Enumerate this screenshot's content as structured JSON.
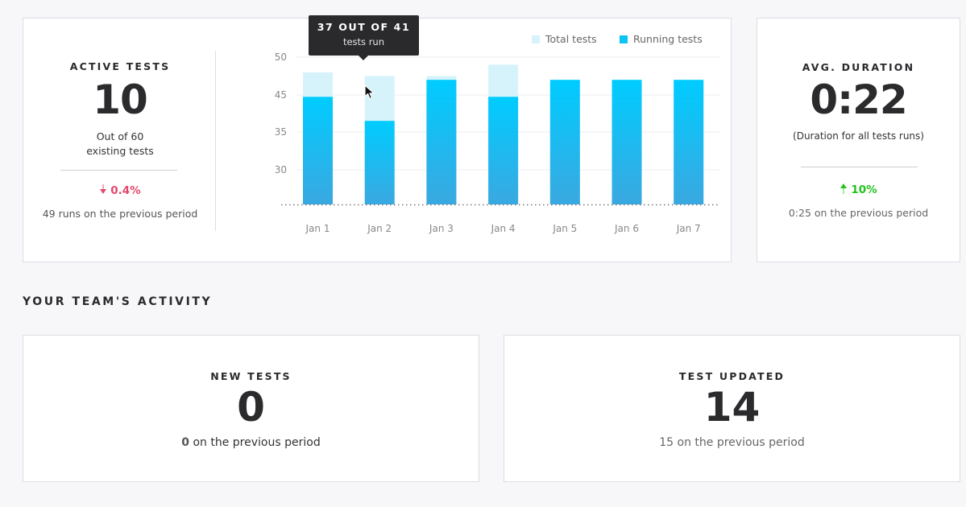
{
  "active_tests": {
    "label": "ACTIVE TESTS",
    "value": "10",
    "sub_line1": "Out of 60",
    "sub_line2": "existing tests",
    "delta": "0.4%",
    "previous": "49 runs on the previous period"
  },
  "chart_data": {
    "type": "bar",
    "categories": [
      "Jan 1",
      "Jan 2",
      "Jan 3",
      "Jan 4",
      "Jan 5",
      "Jan 6",
      "Jan 7"
    ],
    "y_ticks": [
      50,
      45,
      35,
      30
    ],
    "series": [
      {
        "name": "Total tests",
        "values": [
          48,
          47.5,
          47.5,
          49,
          47,
          47,
          47
        ],
        "color": "#d6f3fc"
      },
      {
        "name": "Running tests",
        "values": [
          44.5,
          38,
          47,
          44.5,
          47,
          47,
          47
        ],
        "color": "#0ac5f3"
      }
    ],
    "legend_position": "top-right",
    "grid": true
  },
  "tooltip": {
    "title": "37 OUT OF 41",
    "subtitle": "tests run"
  },
  "avg_duration": {
    "label": "AVG. DURATION",
    "value": "0:22",
    "sub": "(Duration for all tests runs)",
    "delta": "10%",
    "previous": "0:25 on the previous period"
  },
  "team_activity": {
    "title": "YOUR TEAM'S ACTIVITY"
  },
  "new_tests": {
    "label": "NEW TESTS",
    "value": "0",
    "prev_value": "0",
    "prev_text": " on the previous period"
  },
  "test_updated": {
    "label": "TEST UPDATED",
    "value": "14",
    "previous": "15 on the previous period"
  }
}
